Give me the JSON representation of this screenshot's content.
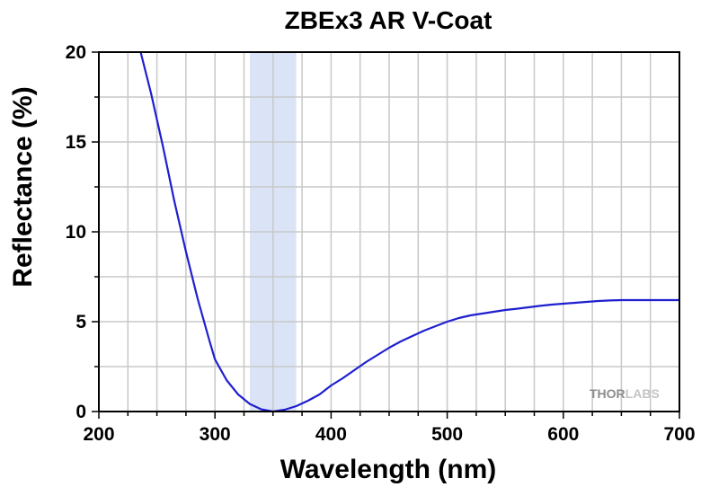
{
  "chart_data": {
    "type": "line",
    "title": "ZBEx3 AR V-Coat",
    "xlabel": "Wavelength (nm)",
    "ylabel": "Reflectance (%)",
    "xlim": [
      200,
      700
    ],
    "ylim": [
      0,
      20
    ],
    "xticks": [
      "200",
      "300",
      "400",
      "500",
      "600",
      "700"
    ],
    "yticks": [
      "0",
      "5",
      "10",
      "15",
      "20"
    ],
    "grid": true,
    "highlight_band": [
      330,
      370
    ],
    "series": [
      {
        "color": "#1f1fd0",
        "x": [
          236,
          245,
          255,
          265,
          275,
          285,
          295,
          300,
          310,
          320,
          330,
          340,
          350,
          360,
          370,
          380,
          390,
          400,
          410,
          420,
          430,
          440,
          450,
          460,
          470,
          480,
          490,
          500,
          510,
          520,
          530,
          540,
          550,
          560,
          570,
          580,
          590,
          600,
          610,
          620,
          630,
          640,
          650,
          660,
          670,
          680,
          690,
          700
        ],
        "y": [
          20.0,
          17.7,
          14.8,
          11.7,
          8.9,
          6.3,
          4.0,
          2.9,
          1.75,
          0.95,
          0.42,
          0.12,
          0.0,
          0.1,
          0.3,
          0.6,
          0.95,
          1.45,
          1.85,
          2.3,
          2.75,
          3.15,
          3.55,
          3.9,
          4.2,
          4.5,
          4.75,
          5.0,
          5.2,
          5.35,
          5.45,
          5.55,
          5.65,
          5.72,
          5.8,
          5.88,
          5.95,
          6.0,
          6.05,
          6.1,
          6.15,
          6.18,
          6.2,
          6.2,
          6.2,
          6.2,
          6.2,
          6.2
        ]
      }
    ]
  },
  "logo": {
    "part1": "THOR",
    "part2": "LABS"
  },
  "colors": {
    "band": "#dbe4f7",
    "grid": "#c8c8c8",
    "line": "#1f1fd0",
    "logo_dark": "#8c8c8c",
    "logo_light": "#c4c4c4"
  }
}
